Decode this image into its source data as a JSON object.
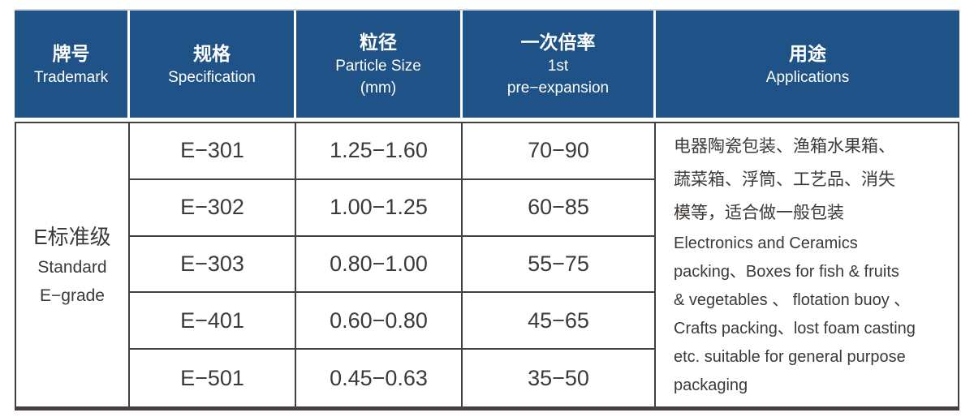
{
  "colors": {
    "header_bg": "#1f5286",
    "header_text": "#ffffff",
    "body_text": "#3d3936",
    "border": "#45403e",
    "page_bg": "#ffffff"
  },
  "table": {
    "header": {
      "columns": [
        {
          "zh": "牌号",
          "en": "Trademark"
        },
        {
          "zh": "规格",
          "en": "Specification"
        },
        {
          "zh": "粒径",
          "en": "Particle Size",
          "en2": "(mm)"
        },
        {
          "zh": "一次倍率",
          "en": "1st",
          "en2": "pre−expansion"
        },
        {
          "zh": "用途",
          "en": "Applications"
        }
      ]
    },
    "trademark": {
      "zh": "E标准级",
      "en1": "Standard",
      "en2": "E−grade"
    },
    "rows": [
      {
        "spec": "E−301",
        "particle_size": "1.25−1.60",
        "pre_expansion": "70−90"
      },
      {
        "spec": "E−302",
        "particle_size": "1.00−1.25",
        "pre_expansion": "60−85"
      },
      {
        "spec": "E−303",
        "particle_size": "0.80−1.00",
        "pre_expansion": "55−75"
      },
      {
        "spec": "E−401",
        "particle_size": "0.60−0.80",
        "pre_expansion": "45−65"
      },
      {
        "spec": "E−501",
        "particle_size": "0.45−0.63",
        "pre_expansion": "35−50"
      }
    ],
    "applications": {
      "zh_lines": [
        "电器陶瓷包装、渔箱水果箱、",
        "蔬菜箱、浮筒、工艺品、消失",
        "模等，适合做一般包装"
      ],
      "en_lines": [
        "Electronics and Ceramics",
        "packing、Boxes for fish & fruits",
        "& vegetables 、 flotation buoy 、",
        "Crafts packing、lost foam casting",
        "etc. suitable for general purpose",
        "packaging"
      ]
    }
  },
  "chart_data": {
    "type": "table",
    "title": "E-grade EPS specification table",
    "columns": [
      "牌号 Trademark",
      "规格 Specification",
      "粒径 Particle Size (mm)",
      "一次倍率 1st pre-expansion",
      "用途 Applications"
    ],
    "trademark_group": "E标准级 Standard E-grade",
    "rows": [
      {
        "specification": "E-301",
        "particle_size_mm": "1.25-1.60",
        "first_pre_expansion": "70-90"
      },
      {
        "specification": "E-302",
        "particle_size_mm": "1.00-1.25",
        "first_pre_expansion": "60-85"
      },
      {
        "specification": "E-303",
        "particle_size_mm": "0.80-1.00",
        "first_pre_expansion": "55-75"
      },
      {
        "specification": "E-401",
        "particle_size_mm": "0.60-0.80",
        "first_pre_expansion": "45-65"
      },
      {
        "specification": "E-501",
        "particle_size_mm": "0.45-0.63",
        "first_pre_expansion": "35-50"
      }
    ],
    "applications": "电器陶瓷包装、渔箱水果箱、蔬菜箱、浮筒、工艺品、消失模等，适合做一般包装 Electronics and Ceramics packing、Boxes for fish & fruits & vegetables 、 flotation buoy 、 Crafts packing、lost foam casting etc. suitable for general purpose packaging"
  }
}
